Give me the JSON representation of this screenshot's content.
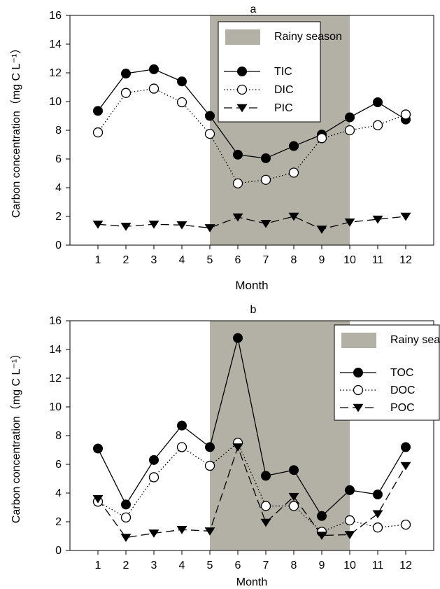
{
  "colors": {
    "rainy_season_fill": "#b3b1a6",
    "line": "#000000",
    "open_marker_fill": "#ffffff"
  },
  "chart_data": [
    {
      "type": "line",
      "title": "a",
      "xlabel": "Month",
      "ylabel": "Carbon concentration（mg C L⁻¹）",
      "x": [
        1,
        2,
        3,
        4,
        5,
        6,
        7,
        8,
        9,
        10,
        11,
        12
      ],
      "xlim": [
        0,
        13
      ],
      "ylim": [
        0,
        16
      ],
      "yticks": [
        0,
        2,
        4,
        6,
        8,
        10,
        12,
        14,
        16
      ],
      "grid": false,
      "legend_position": "top-center",
      "shaded_region": {
        "label": "Rainy season",
        "x_start": 5,
        "x_end": 10
      },
      "series": [
        {
          "name": "TIC",
          "marker": "filled-circle",
          "line_style": "solid",
          "values": [
            9.35,
            11.95,
            12.25,
            11.4,
            9.0,
            6.3,
            6.05,
            6.9,
            7.7,
            8.9,
            9.95,
            8.75
          ]
        },
        {
          "name": "DIC",
          "marker": "open-circle",
          "line_style": "dotted",
          "values": [
            7.85,
            10.6,
            10.9,
            9.95,
            7.75,
            4.3,
            4.55,
            5.05,
            7.45,
            8.0,
            8.35,
            9.1
          ]
        },
        {
          "name": "PIC",
          "marker": "filled-triangle-down",
          "line_style": "dashed",
          "values": [
            1.45,
            1.3,
            1.45,
            1.4,
            1.2,
            1.95,
            1.5,
            2.0,
            1.1,
            1.6,
            1.8,
            2.0
          ]
        }
      ]
    },
    {
      "type": "line",
      "title": "b",
      "xlabel": "Month",
      "ylabel": "Carbon concentration（mg C L⁻¹）",
      "x": [
        1,
        2,
        3,
        4,
        5,
        6,
        7,
        8,
        9,
        10,
        11,
        12
      ],
      "xlim": [
        0,
        13
      ],
      "ylim": [
        0,
        16
      ],
      "yticks": [
        0,
        2,
        4,
        6,
        8,
        10,
        12,
        14,
        16
      ],
      "grid": false,
      "legend_position": "top-right",
      "shaded_region": {
        "label": "Rainy season",
        "x_start": 5,
        "x_end": 10
      },
      "series": [
        {
          "name": "TOC",
          "marker": "filled-circle",
          "line_style": "solid",
          "values": [
            7.1,
            3.2,
            6.3,
            8.7,
            7.2,
            14.8,
            5.2,
            5.6,
            2.4,
            4.2,
            3.9,
            7.2
          ]
        },
        {
          "name": "DOC",
          "marker": "open-circle",
          "line_style": "dotted",
          "values": [
            3.4,
            2.3,
            5.1,
            7.2,
            5.9,
            7.5,
            3.1,
            3.1,
            1.3,
            2.1,
            1.6,
            1.8
          ]
        },
        {
          "name": "POC",
          "marker": "filled-triangle-down",
          "line_style": "dashed",
          "values": [
            3.6,
            0.9,
            1.2,
            1.45,
            1.35,
            7.2,
            1.95,
            3.75,
            1.05,
            1.1,
            2.55,
            5.9
          ]
        }
      ]
    }
  ]
}
